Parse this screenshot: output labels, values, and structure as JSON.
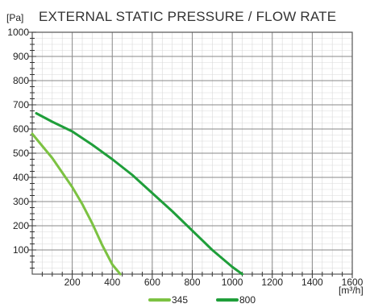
{
  "chart_data": {
    "type": "line",
    "title": "EXTERNAL STATIC PRESSURE / FLOW RATE",
    "ylabel": "[Pa]",
    "xlabel": "[m³/h]",
    "xlim": [
      0,
      1600
    ],
    "ylim": [
      0,
      1000
    ],
    "x_ticks": [
      200,
      400,
      600,
      800,
      1000,
      1200,
      1400,
      1600
    ],
    "y_ticks": [
      100,
      200,
      300,
      400,
      500,
      600,
      700,
      800,
      900,
      1000
    ],
    "grid": true,
    "legend": "bottom",
    "series": [
      {
        "name": "345",
        "color": "#7cc242",
        "x": [
          0,
          50,
          100,
          150,
          200,
          250,
          300,
          350,
          400,
          440
        ],
        "y": [
          580,
          530,
          480,
          420,
          360,
          290,
          210,
          120,
          40,
          0
        ]
      },
      {
        "name": "800",
        "color": "#1f9e3a",
        "x": [
          20,
          100,
          200,
          300,
          400,
          500,
          600,
          700,
          800,
          900,
          1000,
          1050
        ],
        "y": [
          665,
          630,
          590,
          535,
          475,
          410,
          335,
          260,
          180,
          100,
          30,
          0
        ]
      }
    ]
  }
}
